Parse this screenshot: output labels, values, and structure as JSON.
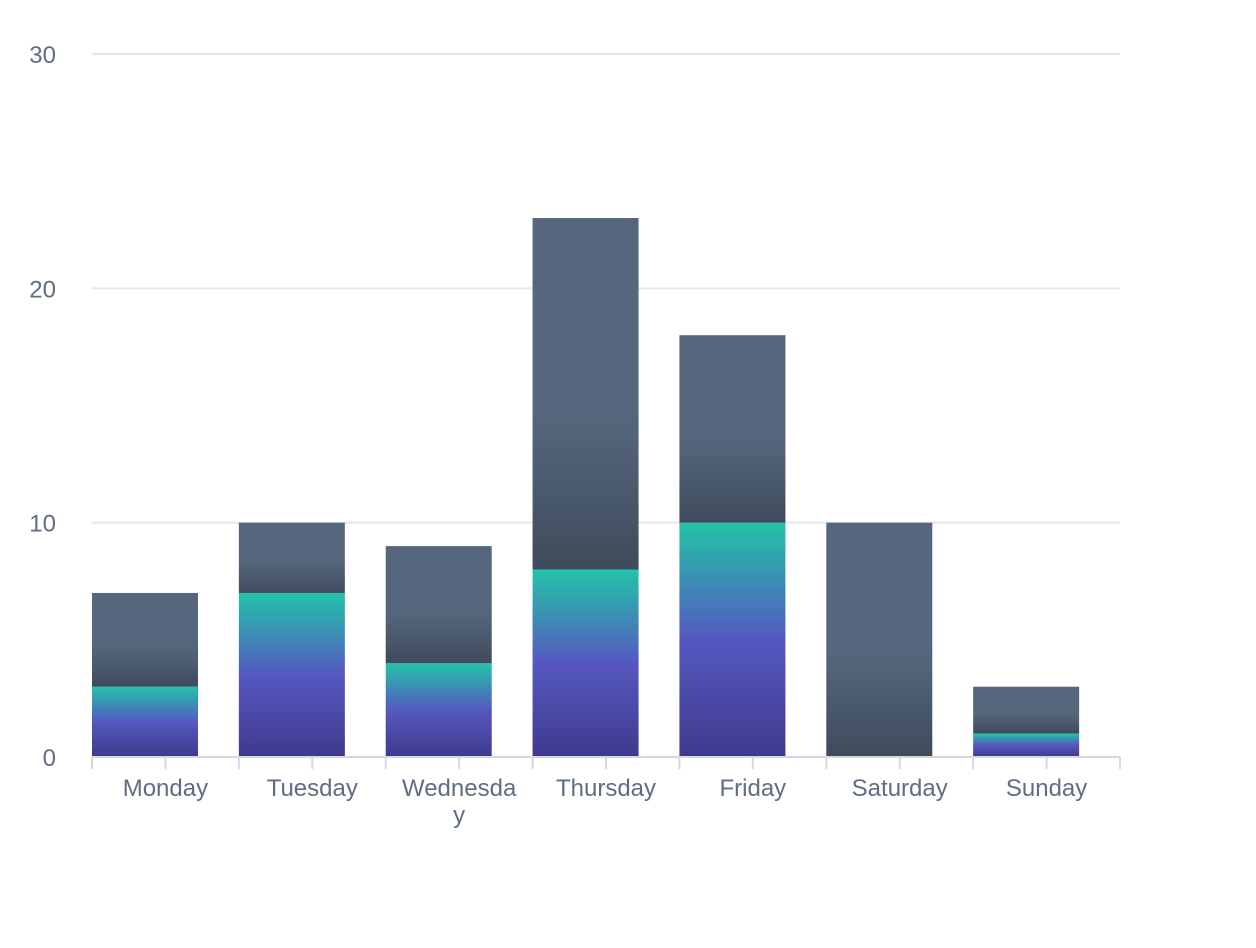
{
  "chart_data": {
    "type": "bar",
    "stacked": true,
    "categories": [
      "Monday",
      "Tuesday",
      "Wednesday",
      "Thursday",
      "Friday",
      "Saturday",
      "Sunday"
    ],
    "series": [
      {
        "values": [
          3,
          7,
          4,
          8,
          10,
          0,
          1
        ],
        "color_top": "#22c4a8",
        "color_mid": "#5558c0",
        "color_bottom": "#3f3a8c"
      },
      {
        "values": [
          4,
          3,
          5,
          15,
          8,
          10,
          2
        ],
        "color_top": "#56677d",
        "color_bottom": "#3f4b5c"
      }
    ],
    "ylim": [
      0,
      30
    ],
    "yticks": [
      0,
      10,
      20,
      30
    ],
    "grid": true,
    "legend": "none",
    "colors": {
      "grid": "#e3e6ea",
      "axis": "#d5d9de",
      "text": "#5f6e82"
    }
  }
}
